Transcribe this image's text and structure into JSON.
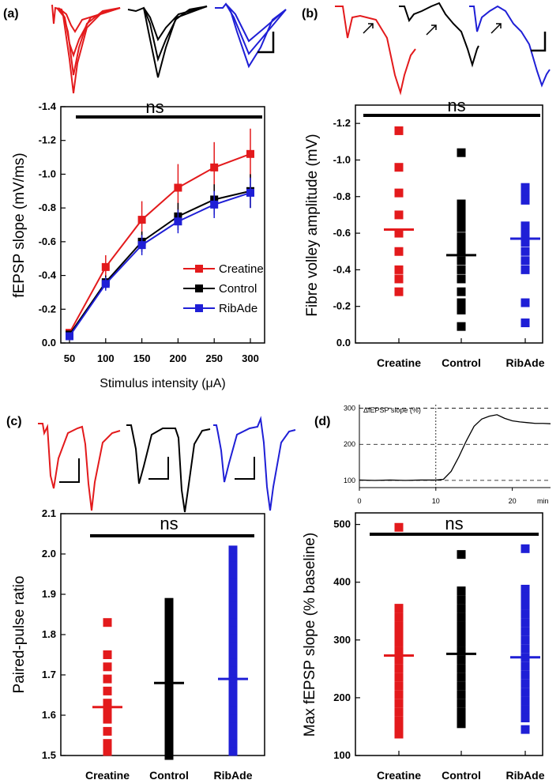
{
  "figure": {
    "colors": {
      "creatine": "#e31a1c",
      "control": "#000000",
      "ribade": "#1f1fd6"
    }
  },
  "chart_data": [
    {
      "panel": "(a)",
      "type": "line",
      "significance": "ns",
      "xlabel": "Stimulus intensity (μA)",
      "ylabel": "fEPSP slope (mV/ms)",
      "x": [
        50,
        100,
        150,
        200,
        250,
        300
      ],
      "xlim": [
        50,
        300
      ],
      "ylim": [
        0.0,
        -1.4
      ],
      "x_ticks": [
        "50",
        "100",
        "150",
        "200",
        "250",
        "300"
      ],
      "y_ticks": [
        "0.0",
        "-0.2",
        "-0.4",
        "-0.6",
        "-0.8",
        "-1.0",
        "-1.2",
        "-1.4"
      ],
      "legend_position": "bottom-right",
      "series": [
        {
          "name": "Creatine",
          "color": "#e31a1c",
          "values": [
            -0.06,
            -0.45,
            -0.73,
            -0.92,
            -1.04,
            -1.12
          ],
          "errors": [
            0.02,
            0.07,
            0.11,
            0.14,
            0.15,
            0.15
          ]
        },
        {
          "name": "Control",
          "color": "#000000",
          "values": [
            -0.05,
            -0.36,
            -0.6,
            -0.75,
            -0.85,
            -0.9
          ],
          "errors": [
            0.02,
            0.04,
            0.06,
            0.08,
            0.09,
            0.1
          ]
        },
        {
          "name": "RibAde",
          "color": "#1f1fd6",
          "values": [
            -0.04,
            -0.35,
            -0.58,
            -0.72,
            -0.82,
            -0.89
          ],
          "errors": [
            0.02,
            0.04,
            0.06,
            0.07,
            0.08,
            0.09
          ]
        }
      ]
    },
    {
      "panel": "(b)",
      "type": "scatter",
      "significance": "ns",
      "ylabel": "Fibre volley amplitude (mV)",
      "categories": [
        "Creatine",
        "Control",
        "RibAde"
      ],
      "ylim": [
        0.0,
        -1.3
      ],
      "y_ticks": [
        "0.0",
        "-0.2",
        "-0.4",
        "-0.6",
        "-0.8",
        "-1.0",
        "-1.2"
      ],
      "series": [
        {
          "name": "Creatine",
          "color": "#e31a1c",
          "points": [
            -1.16,
            -0.96,
            -0.82,
            -0.7,
            -0.6,
            -0.5,
            -0.4,
            -0.35,
            -0.28
          ],
          "mean": -0.62
        },
        {
          "name": "Control",
          "color": "#000000",
          "points": [
            -1.04,
            -0.76,
            -0.73,
            -0.7,
            -0.67,
            -0.63,
            -0.58,
            -0.54,
            -0.5,
            -0.45,
            -0.4,
            -0.35,
            -0.28,
            -0.22,
            -0.18,
            -0.09
          ],
          "mean": -0.48
        },
        {
          "name": "RibAde",
          "color": "#1f1fd6",
          "points": [
            -0.85,
            -0.82,
            -0.78,
            -0.64,
            -0.6,
            -0.55,
            -0.5,
            -0.45,
            -0.4,
            -0.22,
            -0.11
          ],
          "mean": -0.57
        }
      ]
    },
    {
      "panel": "(c)",
      "type": "scatter",
      "significance": "ns",
      "ylabel": "Paired-pulse ratio",
      "categories": [
        "Creatine",
        "Control",
        "RibAde"
      ],
      "ylim": [
        1.5,
        2.1
      ],
      "y_ticks": [
        "1.5",
        "1.6",
        "1.7",
        "1.8",
        "1.9",
        "2.0",
        "2.1"
      ],
      "series": [
        {
          "name": "Creatine",
          "color": "#e31a1c",
          "points": [
            1.83,
            1.75,
            1.72,
            1.69,
            1.66,
            1.63,
            1.61,
            1.59,
            1.56,
            1.53,
            1.51
          ],
          "mean": 1.62
        },
        {
          "name": "Control",
          "color": "#000000",
          "points": [
            1.88,
            1.86,
            1.84,
            1.82,
            1.8,
            1.78,
            1.76,
            1.74,
            1.72,
            1.7,
            1.68,
            1.66,
            1.64,
            1.62,
            1.6,
            1.58,
            1.56,
            1.54,
            1.52,
            1.5
          ],
          "mean": 1.68
        },
        {
          "name": "RibAde",
          "color": "#1f1fd6",
          "points": [
            2.01,
            1.99,
            1.97,
            1.95,
            1.93,
            1.91,
            1.89,
            1.87,
            1.85,
            1.83,
            1.81,
            1.79,
            1.77,
            1.75,
            1.73,
            1.71,
            1.69,
            1.67,
            1.65,
            1.63,
            1.61,
            1.59,
            1.57,
            1.55,
            1.53,
            1.51
          ],
          "mean": 1.69
        }
      ]
    },
    {
      "panel": "(d)",
      "type": "scatter",
      "significance": "ns",
      "ylabel": "Max fEPSP slope (% baseline)",
      "categories": [
        "Creatine",
        "Control",
        "RibAde"
      ],
      "ylim": [
        100,
        520
      ],
      "y_ticks": [
        "100",
        "200",
        "300",
        "400",
        "500"
      ],
      "series": [
        {
          "name": "Creatine",
          "color": "#e31a1c",
          "points": [
            495,
            355,
            340,
            325,
            310,
            295,
            280,
            265,
            250,
            235,
            220,
            205,
            190,
            175,
            160,
            148,
            137
          ],
          "mean": 273
        },
        {
          "name": "Control",
          "color": "#000000",
          "points": [
            448,
            385,
            370,
            355,
            340,
            325,
            310,
            295,
            280,
            265,
            250,
            235,
            220,
            205,
            190,
            175,
            165,
            155
          ],
          "mean": 276
        },
        {
          "name": "RibAde",
          "color": "#1f1fd6",
          "points": [
            458,
            388,
            375,
            360,
            345,
            330,
            315,
            300,
            285,
            270,
            255,
            240,
            225,
            210,
            195,
            180,
            165,
            145
          ],
          "mean": 270
        }
      ]
    },
    {
      "panel": "(d)-inset",
      "type": "line",
      "title": "ΔfEPSP slope (%)",
      "x_ticks": [
        "0",
        "10",
        "20"
      ],
      "x_unit": "min",
      "y_ticks": [
        "100",
        "200",
        "300"
      ],
      "xlim": [
        0,
        25
      ],
      "ylim": [
        80,
        310
      ],
      "x": [
        0,
        2,
        4,
        6,
        8,
        10,
        11,
        12,
        13,
        14,
        15,
        16,
        17,
        18,
        19,
        20,
        21,
        22,
        23,
        24,
        25
      ],
      "values": [
        101,
        100,
        101,
        100,
        101,
        101,
        103,
        125,
        165,
        210,
        250,
        270,
        278,
        282,
        272,
        265,
        262,
        260,
        258,
        258,
        257
      ]
    }
  ]
}
